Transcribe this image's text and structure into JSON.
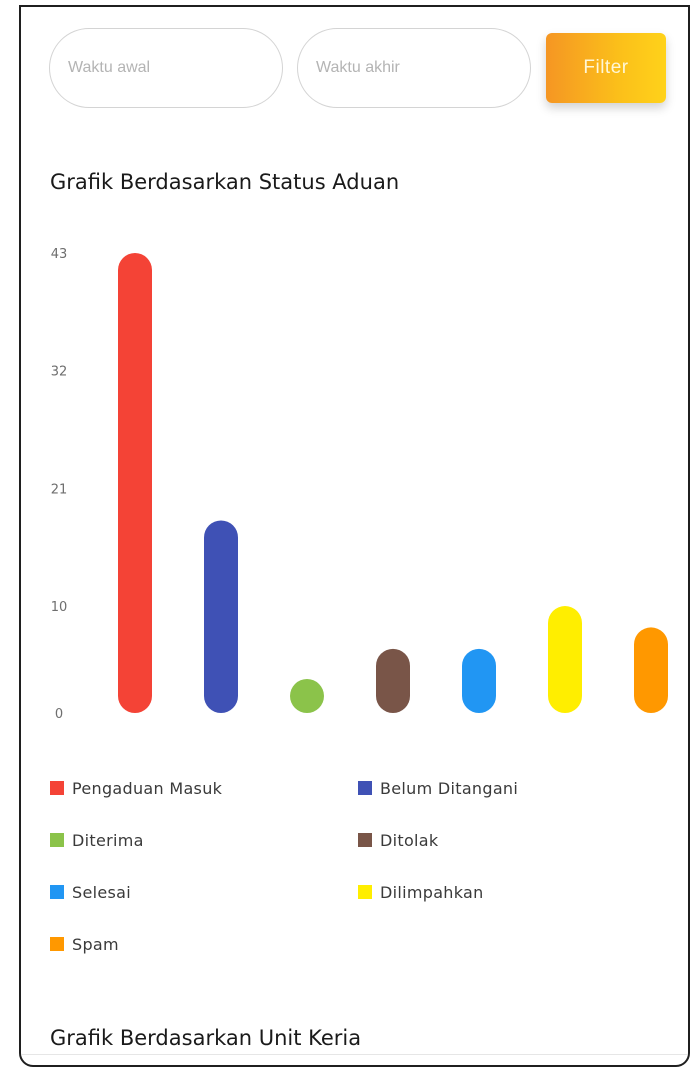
{
  "filters": {
    "start_placeholder": "Waktu awal",
    "end_placeholder": "Waktu akhir",
    "filter_label": "Filter"
  },
  "sections": {
    "status_title": "Grafik Berdasarkan Status Aduan",
    "unit_title": "Grafik Berdasarkan Unit Keria"
  },
  "chart_data": {
    "type": "bar",
    "title": "Grafik Berdasarkan Status Aduan",
    "xlabel": "",
    "ylabel": "",
    "categories": [
      "Pengaduan Masuk",
      "Belum Ditangani",
      "Diterima",
      "Ditolak",
      "Selesai",
      "Dilimpahkan",
      "Spam"
    ],
    "values": [
      43,
      18,
      0,
      6,
      6,
      10,
      8
    ],
    "colors": [
      "#f44336",
      "#3f51b5",
      "#8bc34a",
      "#795548",
      "#2196f3",
      "#ffee00",
      "#ff9800"
    ],
    "yticks": [
      "0",
      "10",
      "21",
      "32",
      "43"
    ],
    "ylim": [
      0,
      43
    ],
    "grid": false,
    "legend_position": "bottom"
  }
}
